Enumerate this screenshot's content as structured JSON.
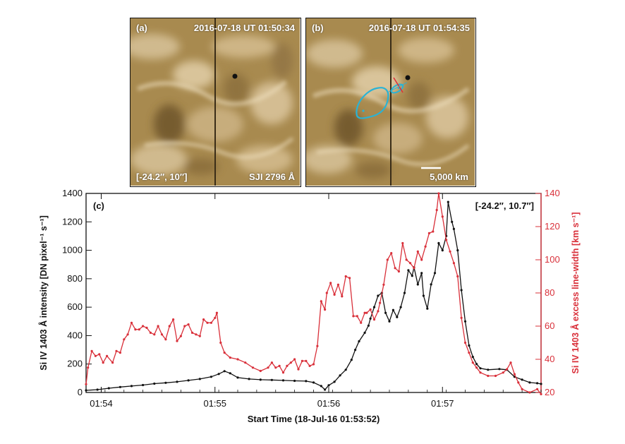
{
  "panels": {
    "a": {
      "label": "(a)",
      "timestamp": "2016-07-18 UT 01:50:34",
      "coords": "[-24.2″, 10″]",
      "instrument": "SJI 2796 Å"
    },
    "b": {
      "label": "(b)",
      "timestamp": "2016-07-18 UT 01:54:35",
      "scale_label": "5,000 km"
    }
  },
  "colors": {
    "intensity": "#111111",
    "linewidth": "#d9303a",
    "contour": "#29b3d6",
    "marker": "#e0303a",
    "image_base": "#a88a4f"
  },
  "chart_data": {
    "type": "line",
    "panel_label": "(c)",
    "annotation": "[-24.2″, 10.7″]",
    "xlabel": "Start Time (18-Jul-16 01:53:52)",
    "ylabel_left": "Si IV 1403 Å intensity [DN pixel⁻¹ s⁻¹]",
    "ylabel_right": "Si IV 1403 Å excess line-width [km s⁻¹]",
    "xlim_seconds": [
      0,
      240
    ],
    "x_ticks": [
      {
        "t": 8,
        "label": "01:54"
      },
      {
        "t": 68,
        "label": "01:55"
      },
      {
        "t": 128,
        "label": "01:56"
      },
      {
        "t": 188,
        "label": "01:57"
      }
    ],
    "ylim_left": [
      0,
      1400
    ],
    "y_ticks_left": [
      0,
      200,
      400,
      600,
      800,
      1000,
      1200,
      1400
    ],
    "ylim_right": [
      20,
      140
    ],
    "y_ticks_right": [
      20,
      40,
      60,
      80,
      100,
      120,
      140
    ],
    "series": [
      {
        "axis": "left",
        "color": "#111111",
        "points": [
          [
            0,
            15
          ],
          [
            6,
            20
          ],
          [
            12,
            30
          ],
          [
            18,
            38
          ],
          [
            24,
            45
          ],
          [
            30,
            52
          ],
          [
            36,
            62
          ],
          [
            42,
            68
          ],
          [
            48,
            75
          ],
          [
            54,
            85
          ],
          [
            60,
            95
          ],
          [
            66,
            110
          ],
          [
            70,
            130
          ],
          [
            73,
            150
          ],
          [
            76,
            135
          ],
          [
            80,
            105
          ],
          [
            86,
            95
          ],
          [
            92,
            90
          ],
          [
            98,
            88
          ],
          [
            104,
            85
          ],
          [
            110,
            82
          ],
          [
            116,
            80
          ],
          [
            120,
            70
          ],
          [
            124,
            45
          ],
          [
            126,
            20
          ],
          [
            128,
            50
          ],
          [
            131,
            75
          ],
          [
            134,
            120
          ],
          [
            137,
            160
          ],
          [
            140,
            230
          ],
          [
            142,
            300
          ],
          [
            144,
            360
          ],
          [
            147,
            420
          ],
          [
            149,
            470
          ],
          [
            150,
            520
          ],
          [
            152,
            600
          ],
          [
            154,
            680
          ],
          [
            156,
            700
          ],
          [
            158,
            560
          ],
          [
            160,
            500
          ],
          [
            162,
            580
          ],
          [
            164,
            530
          ],
          [
            166,
            600
          ],
          [
            168,
            700
          ],
          [
            170,
            860
          ],
          [
            172,
            820
          ],
          [
            173,
            880
          ],
          [
            175,
            760
          ],
          [
            177,
            840
          ],
          [
            178,
            680
          ],
          [
            180,
            590
          ],
          [
            182,
            760
          ],
          [
            184,
            840
          ],
          [
            186,
            1050
          ],
          [
            188,
            1000
          ],
          [
            190,
            1100
          ],
          [
            191,
            1340
          ],
          [
            193,
            1200
          ],
          [
            194,
            1150
          ],
          [
            196,
            1000
          ],
          [
            198,
            720
          ],
          [
            200,
            500
          ],
          [
            202,
            330
          ],
          [
            204,
            250
          ],
          [
            206,
            200
          ],
          [
            208,
            170
          ],
          [
            212,
            160
          ],
          [
            218,
            165
          ],
          [
            222,
            160
          ],
          [
            226,
            110
          ],
          [
            230,
            90
          ],
          [
            234,
            70
          ],
          [
            238,
            65
          ],
          [
            240,
            60
          ]
        ]
      },
      {
        "axis": "right",
        "color": "#d9303a",
        "points": [
          [
            0,
            25
          ],
          [
            1,
            35
          ],
          [
            3,
            45
          ],
          [
            5,
            42
          ],
          [
            7,
            43
          ],
          [
            9,
            38
          ],
          [
            11,
            42
          ],
          [
            14,
            38
          ],
          [
            16,
            45
          ],
          [
            18,
            44
          ],
          [
            20,
            52
          ],
          [
            22,
            55
          ],
          [
            24,
            62
          ],
          [
            26,
            58
          ],
          [
            28,
            58
          ],
          [
            30,
            60
          ],
          [
            32,
            59
          ],
          [
            34,
            56
          ],
          [
            36,
            55
          ],
          [
            38,
            60
          ],
          [
            40,
            55
          ],
          [
            42,
            52
          ],
          [
            44,
            60
          ],
          [
            46,
            64
          ],
          [
            48,
            51
          ],
          [
            50,
            54
          ],
          [
            52,
            60
          ],
          [
            54,
            61
          ],
          [
            56,
            56
          ],
          [
            58,
            55
          ],
          [
            60,
            54
          ],
          [
            62,
            64
          ],
          [
            64,
            62
          ],
          [
            66,
            62
          ],
          [
            68,
            65
          ],
          [
            69,
            68
          ],
          [
            71,
            50
          ],
          [
            73,
            44
          ],
          [
            76,
            41
          ],
          [
            80,
            40
          ],
          [
            84,
            38
          ],
          [
            88,
            35
          ],
          [
            92,
            33
          ],
          [
            96,
            35
          ],
          [
            98,
            38
          ],
          [
            100,
            35
          ],
          [
            102,
            36
          ],
          [
            104,
            32
          ],
          [
            106,
            36
          ],
          [
            108,
            38
          ],
          [
            110,
            40
          ],
          [
            112,
            34
          ],
          [
            114,
            39
          ],
          [
            116,
            39
          ],
          [
            118,
            36
          ],
          [
            120,
            37
          ],
          [
            122,
            48
          ],
          [
            124,
            75
          ],
          [
            126,
            70
          ],
          [
            127,
            80
          ],
          [
            129,
            86
          ],
          [
            131,
            79
          ],
          [
            133,
            85
          ],
          [
            135,
            78
          ],
          [
            137,
            90
          ],
          [
            139,
            89
          ],
          [
            141,
            66
          ],
          [
            143,
            66
          ],
          [
            145,
            62
          ],
          [
            147,
            68
          ],
          [
            148,
            68
          ],
          [
            150,
            70
          ],
          [
            152,
            64
          ],
          [
            154,
            69
          ],
          [
            155,
            74
          ],
          [
            157,
            85
          ],
          [
            159,
            100
          ],
          [
            161,
            104
          ],
          [
            163,
            95
          ],
          [
            165,
            93
          ],
          [
            167,
            110
          ],
          [
            169,
            100
          ],
          [
            171,
            98
          ],
          [
            173,
            95
          ],
          [
            175,
            105
          ],
          [
            177,
            100
          ],
          [
            179,
            108
          ],
          [
            181,
            116
          ],
          [
            183,
            117
          ],
          [
            185,
            130
          ],
          [
            186,
            140
          ],
          [
            188,
            126
          ],
          [
            190,
            112
          ],
          [
            192,
            105
          ],
          [
            194,
            98
          ],
          [
            196,
            90
          ],
          [
            198,
            65
          ],
          [
            200,
            50
          ],
          [
            202,
            44
          ],
          [
            204,
            38
          ],
          [
            206,
            35
          ],
          [
            208,
            32
          ],
          [
            212,
            30
          ],
          [
            216,
            30
          ],
          [
            220,
            32
          ],
          [
            222,
            34
          ],
          [
            224,
            38
          ],
          [
            226,
            31
          ],
          [
            228,
            26
          ],
          [
            230,
            22
          ],
          [
            234,
            20
          ],
          [
            238,
            22
          ],
          [
            240,
            19
          ]
        ]
      }
    ]
  }
}
